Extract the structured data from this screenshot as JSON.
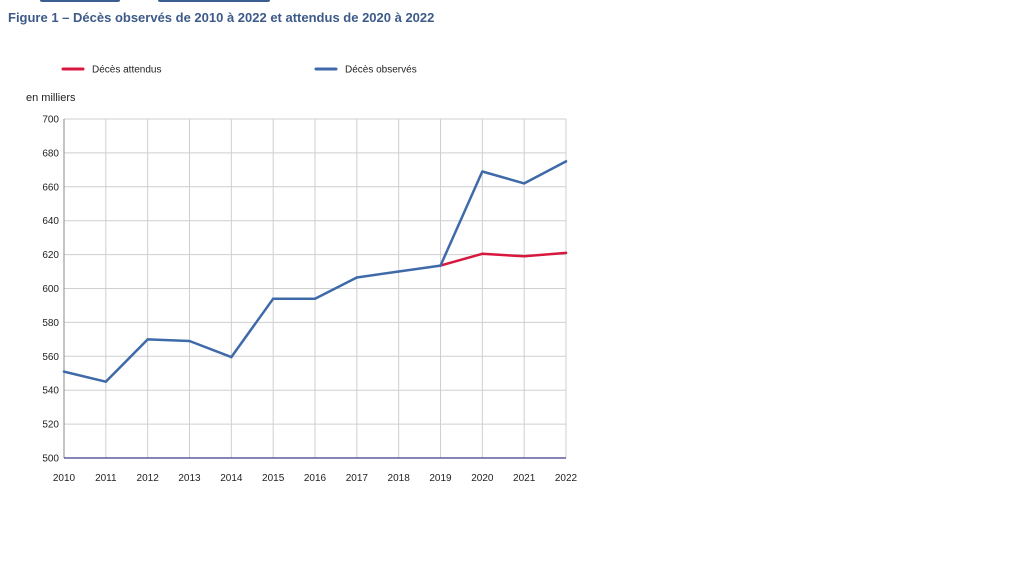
{
  "figure": {
    "title": "Figure 1 – Décès observés de 2010 à 2022 et attendus de 2020 à 2022",
    "unit": "en milliers"
  },
  "colors": {
    "title": "#3d5a89",
    "observed": "#3f6aa9",
    "expected": "#d8173f",
    "grid": "#cfcfcf",
    "axis": "#3c3c8c"
  },
  "chart_data": {
    "type": "line",
    "x": [
      2010,
      2011,
      2012,
      2013,
      2014,
      2015,
      2016,
      2017,
      2018,
      2019,
      2020,
      2021,
      2022
    ],
    "series": [
      {
        "name": "Décès attendus",
        "color": "#d8173f",
        "x": [
          2019,
          2020,
          2021,
          2022
        ],
        "values": [
          613.5,
          620.5,
          619,
          621
        ]
      },
      {
        "name": "Décès observés",
        "color": "#3f6aa9",
        "x": [
          2010,
          2011,
          2012,
          2013,
          2014,
          2015,
          2016,
          2017,
          2018,
          2019,
          2020,
          2021,
          2022
        ],
        "values": [
          551,
          545,
          570,
          569,
          559.5,
          594,
          594,
          606.5,
          610,
          613.5,
          669,
          662,
          675
        ]
      }
    ],
    "ylim": [
      500,
      700
    ],
    "yticks": [
      500,
      520,
      540,
      560,
      580,
      600,
      620,
      640,
      660,
      680,
      700
    ],
    "xticks": [
      "2010",
      "2011",
      "2012",
      "2013",
      "2014",
      "2015",
      "2016",
      "2017",
      "2018",
      "2019",
      "2020",
      "2021",
      "2022"
    ],
    "ylabel": "en milliers",
    "grid": true,
    "legend_position": "top"
  }
}
